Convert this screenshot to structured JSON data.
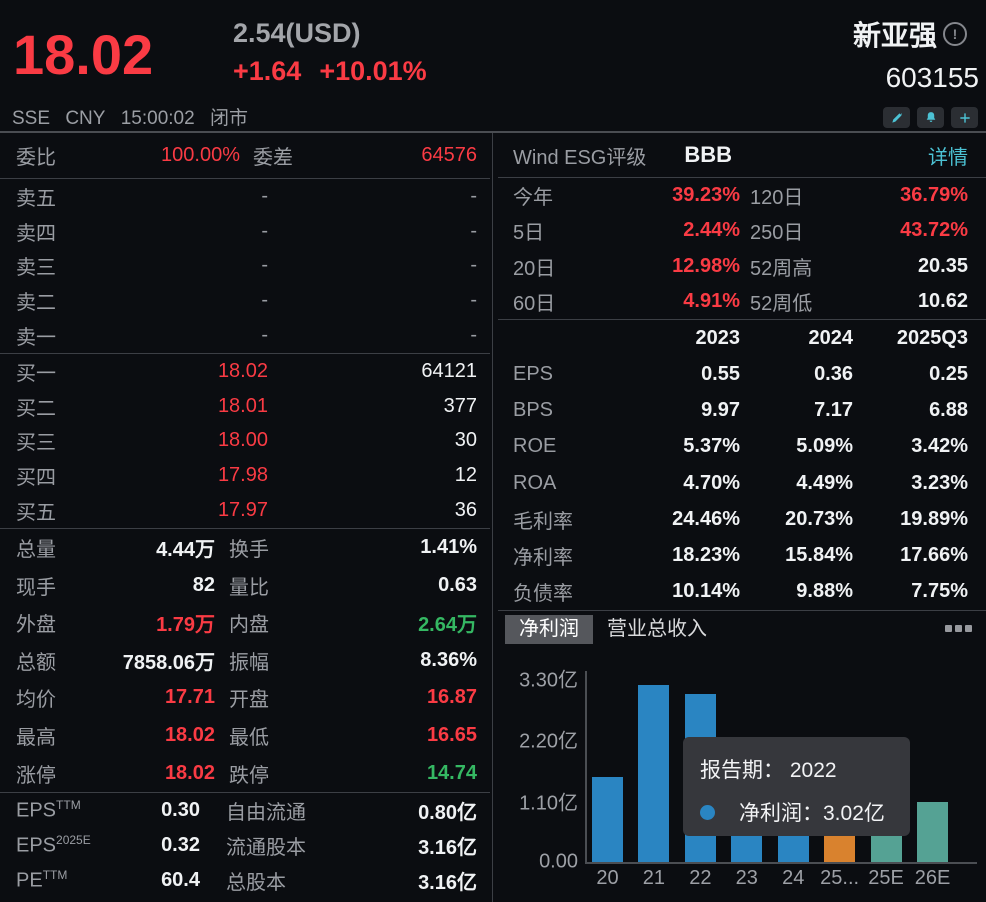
{
  "header": {
    "price": "18.02",
    "price_usd": "2.54(USD)",
    "change": "+1.64",
    "change_pct": "+10.01%",
    "stock_name": "新亚强",
    "stock_code": "603155",
    "exchange": "SSE",
    "currency": "CNY",
    "time": "15:00:02",
    "status": "闭市",
    "icons": [
      "edit-pencil-icon",
      "alert-bell-icon",
      "add-plus-icon",
      "info-circle-icon"
    ]
  },
  "colors": {
    "up_red": "#fa3b44",
    "down_green": "#35b863",
    "link_cyan": "#4cc2d4",
    "bar_blue": "#2a85c2",
    "bar_orange": "#d9822e",
    "bar_teal": "#55a294"
  },
  "order_book": {
    "weibi": {
      "label": "委比",
      "value": "100.00%",
      "label2": "委差",
      "value2": "64576"
    },
    "asks": [
      {
        "label": "卖五",
        "price": "-",
        "volume": "-"
      },
      {
        "label": "卖四",
        "price": "-",
        "volume": "-"
      },
      {
        "label": "卖三",
        "price": "-",
        "volume": "-"
      },
      {
        "label": "卖二",
        "price": "-",
        "volume": "-"
      },
      {
        "label": "卖一",
        "price": "-",
        "volume": "-"
      }
    ],
    "bids": [
      {
        "label": "买一",
        "price": "18.02",
        "volume": "64121"
      },
      {
        "label": "买二",
        "price": "18.01",
        "volume": "377"
      },
      {
        "label": "买三",
        "price": "18.00",
        "volume": "30"
      },
      {
        "label": "买四",
        "price": "17.98",
        "volume": "12"
      },
      {
        "label": "买五",
        "price": "17.97",
        "volume": "36"
      }
    ]
  },
  "stats_rows": [
    {
      "label": "总量",
      "value": "4.44万",
      "vc": "w",
      "label2": "换手",
      "value2": "1.41%",
      "v2c": "w"
    },
    {
      "label": "现手",
      "value": "82",
      "vc": "w",
      "label2": "量比",
      "value2": "0.63",
      "v2c": "w"
    },
    {
      "label": "外盘",
      "value": "1.79万",
      "vc": "r",
      "label2": "内盘",
      "value2": "2.64万",
      "v2c": "g"
    },
    {
      "label": "总额",
      "value": "7858.06万",
      "vc": "w",
      "label2": "振幅",
      "value2": "8.36%",
      "v2c": "w"
    },
    {
      "label": "均价",
      "value": "17.71",
      "vc": "r",
      "label2": "开盘",
      "value2": "16.87",
      "v2c": "r"
    },
    {
      "label": "最高",
      "value": "18.02",
      "vc": "r",
      "label2": "最低",
      "value2": "16.65",
      "v2c": "r"
    },
    {
      "label": "涨停",
      "value": "18.02",
      "vc": "r",
      "label2": "跌停",
      "value2": "14.74",
      "v2c": "g"
    }
  ],
  "valuation_rows": [
    {
      "label": "EPS",
      "sup": "TTM",
      "value": "0.30",
      "label2": "自由流通",
      "value2": "0.80亿"
    },
    {
      "label": "EPS",
      "sup": "2025E",
      "value": "0.32",
      "label2": "流通股本",
      "value2": "3.16亿"
    },
    {
      "label": "PE",
      "sup": "TTM",
      "value": "60.4",
      "label2": "总股本",
      "value2": "3.16亿"
    }
  ],
  "esg": {
    "label": "Wind ESG评级",
    "rating": "BBB",
    "link": "详情"
  },
  "performance_rows": [
    {
      "label": "今年",
      "value": "39.23%",
      "vc": "r",
      "label2": "120日",
      "value2": "36.79%",
      "v2c": "r"
    },
    {
      "label": "5日",
      "value": "2.44%",
      "vc": "r",
      "label2": "250日",
      "value2": "43.72%",
      "v2c": "r"
    },
    {
      "label": "20日",
      "value": "12.98%",
      "vc": "r",
      "label2": "52周高",
      "value2": "20.35",
      "v2c": "w"
    },
    {
      "label": "60日",
      "value": "4.91%",
      "vc": "r",
      "label2": "52周低",
      "value2": "10.62",
      "v2c": "w"
    }
  ],
  "financials": {
    "columns": [
      "2023",
      "2024",
      "2025Q3"
    ],
    "rows": [
      {
        "label": "EPS",
        "values": [
          "0.55",
          "0.36",
          "0.25"
        ]
      },
      {
        "label": "BPS",
        "values": [
          "9.97",
          "7.17",
          "6.88"
        ]
      },
      {
        "label": "ROE",
        "values": [
          "5.37%",
          "5.09%",
          "3.42%"
        ]
      },
      {
        "label": "ROA",
        "values": [
          "4.70%",
          "4.49%",
          "3.23%"
        ]
      },
      {
        "label": "毛利率",
        "values": [
          "24.46%",
          "20.73%",
          "19.89%"
        ]
      },
      {
        "label": "净利率",
        "values": [
          "18.23%",
          "15.84%",
          "17.66%"
        ]
      },
      {
        "label": "负债率",
        "values": [
          "10.14%",
          "9.88%",
          "7.75%"
        ]
      }
    ]
  },
  "chart_tabs": {
    "tabs": [
      {
        "label": "净利润",
        "selected": true
      },
      {
        "label": "营业总收入",
        "selected": false
      }
    ],
    "menu_icon": "ellipsis-menu-icon"
  },
  "chart_data": {
    "type": "bar",
    "series_name": "净利润",
    "unit": "亿",
    "categories": [
      "20",
      "21",
      "22",
      "23",
      "24",
      "25...",
      "25E",
      "26E"
    ],
    "values": [
      1.52,
      3.17,
      3.02,
      null,
      null,
      null,
      null,
      1.07
    ],
    "hidden_by_tooltip_indices": [
      3,
      4,
      5,
      6
    ],
    "bar_colors": [
      "#2a85c2",
      "#2a85c2",
      "#2a85c2",
      "#2a85c2",
      "#2a85c2",
      "#d9822e",
      "#55a294",
      "#55a294"
    ],
    "ytick_labels": [
      "3.30亿",
      "2.20亿",
      "1.10亿",
      "0.00"
    ],
    "ylim": [
      0,
      3.3
    ],
    "grid": false,
    "tooltip": {
      "period_label": "报告期：",
      "period_value": "2022",
      "series_label": "净利润：",
      "series_value": "3.02亿",
      "marker_color": "#2a85c2"
    }
  }
}
